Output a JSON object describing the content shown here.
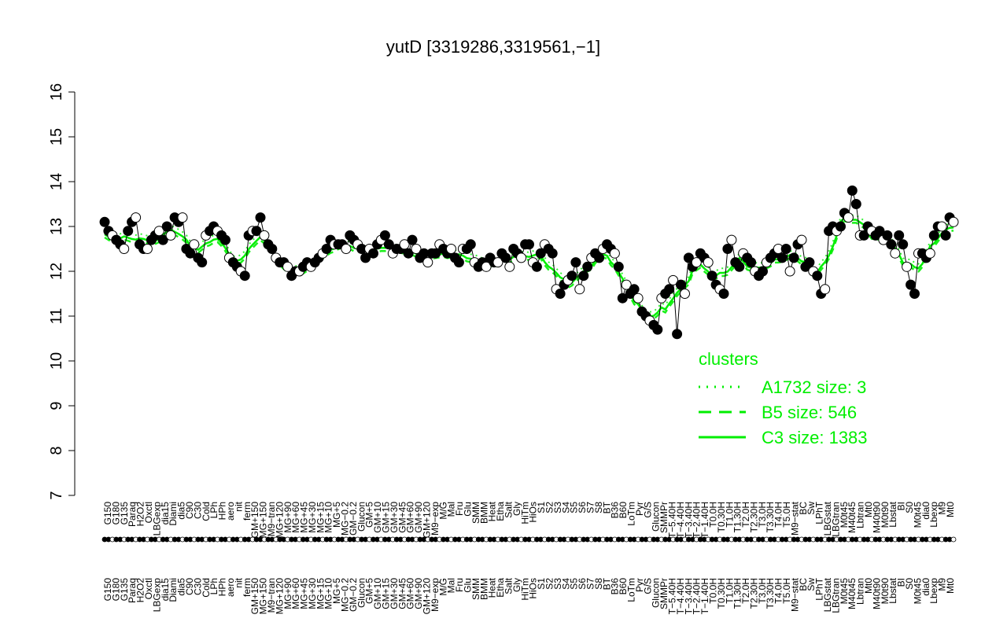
{
  "chart_data": {
    "type": "scatter",
    "title": "yutD [3319286,3319561,−1]",
    "xlabel": "",
    "ylabel": "",
    "ylim": [
      7,
      16
    ],
    "yticks": [
      7,
      8,
      9,
      10,
      11,
      12,
      13,
      14,
      15,
      16
    ],
    "grid": false,
    "x_tick_labels": [
      "G150",
      "G180",
      "G135",
      "Paraq",
      "H2O2",
      "Oxctl",
      "LBGexp",
      "dia15",
      "Diami",
      "dia5",
      "C90",
      "C30",
      "Cold",
      "LPh",
      "HPh",
      "aero",
      "nit",
      "ferm",
      "GM+150",
      "MG+150",
      "M9−tran",
      "MG+120",
      "MG+90",
      "MG+60",
      "MG+45",
      "MG+30",
      "MG+15",
      "MG+10",
      "MG+5",
      "MG−0.2",
      "GM−0.2",
      "Glucon",
      "GM+5",
      "GM+10",
      "GM+15",
      "GM+30",
      "GM+45",
      "GM+60",
      "GM+90",
      "GM+120",
      "M9−exp",
      "M/G",
      "Mal",
      "Fru",
      "Glu",
      "SMM",
      "BMM",
      "Heat",
      "Etha",
      "Salt",
      "Gly",
      "HiTm",
      "HiOs",
      "S1",
      "S2",
      "S3",
      "S4",
      "S5",
      "S6",
      "S7",
      "S8",
      "BT",
      "B36",
      "B60",
      "LoTm",
      "Pyr",
      "G/S",
      "Glucon",
      "SMMPr",
      "T−5.40H",
      "T−4.40H",
      "T−3.40H",
      "T−2.40H",
      "T−1.40H",
      "T0.0H",
      "T0.30H",
      "T1.0H",
      "T1.30H",
      "T2.0H",
      "T2.30H",
      "T3.0H",
      "T3.30H",
      "T4.0H",
      "T5.0H",
      "M9−stat",
      "BC",
      "Sw",
      "LPhT",
      "LBGstat",
      "LBGtran",
      "M0t45",
      "M40t45",
      "Lbtran",
      "Mt0",
      "M40t90",
      "M0t90",
      "Lbstat",
      "BI",
      "S0",
      "M0t45",
      "dia0",
      "Lbexp",
      "M9",
      "Mt0"
    ],
    "series": [
      {
        "name": "",
        "values": [
          13.1,
          12.9,
          12.8,
          12.7,
          12.6,
          12.5,
          12.9,
          13.1,
          13.2,
          12.6,
          12.5,
          12.5,
          12.7,
          12.8,
          12.9,
          12.7,
          13.0,
          12.8,
          13.2,
          13.1,
          13.2,
          12.5,
          12.4,
          12.6,
          12.3,
          12.2,
          12.8,
          12.9,
          13.0,
          12.9,
          12.8,
          12.7,
          12.3,
          12.2,
          12.1,
          12.0,
          11.9,
          12.8,
          12.9,
          12.9,
          13.2,
          12.8,
          12.6,
          12.5,
          12.3,
          12.2,
          12.2,
          12.1,
          11.9,
          12.0,
          12.0,
          12.1,
          12.2,
          12.1,
          12.2,
          12.3,
          12.4,
          12.5,
          12.7,
          12.6,
          12.6,
          12.6,
          12.5,
          12.8,
          12.7,
          12.6,
          12.5,
          12.3,
          12.5,
          12.4,
          12.6,
          12.7,
          12.8,
          12.6,
          12.4,
          12.5,
          12.5,
          12.6,
          12.4,
          12.7,
          12.5,
          12.3,
          12.4,
          12.2,
          12.4,
          12.4,
          12.6,
          12.5,
          12.4,
          12.5,
          12.3,
          12.2,
          12.5,
          12.5,
          12.6,
          12.2,
          12.1,
          12.2,
          12.1,
          12.3,
          12.2,
          12.2,
          12.4,
          12.3,
          12.1,
          12.5,
          12.4,
          12.3,
          12.6,
          12.6,
          12.2,
          12.1,
          12.4,
          12.6,
          12.5,
          12.4,
          11.6,
          11.5,
          11.7,
          11.8,
          11.9,
          12.2,
          11.6,
          11.9,
          12.1,
          12.3,
          12.4,
          12.3,
          12.5,
          12.6,
          12.5,
          12.4,
          12.1,
          11.4,
          11.7,
          11.5,
          11.6,
          11.4,
          11.1,
          11.0,
          10.9,
          10.8,
          10.7,
          11.4,
          11.5,
          11.6,
          11.8,
          10.6,
          11.7,
          11.5,
          12.3,
          12.1,
          12.2,
          12.4,
          12.3,
          12.2,
          11.9,
          11.7,
          11.6,
          11.5,
          12.5,
          12.7,
          12.2,
          12.1,
          12.4,
          12.3,
          12.2,
          12.0,
          11.9,
          12.0,
          12.2,
          12.3,
          12.4,
          12.5,
          12.3,
          12.5,
          12.0,
          12.3,
          12.6,
          12.7,
          12.1,
          12.2,
          12.0,
          11.9,
          11.5,
          11.6,
          12.9,
          13.0,
          12.9,
          13.0,
          13.3,
          13.2,
          13.8,
          13.5,
          12.8,
          12.8,
          13.0,
          12.9,
          12.8,
          12.9,
          12.7,
          12.8,
          12.6,
          12.4,
          12.8,
          12.6,
          12.1,
          11.7,
          11.5,
          12.4,
          12.4,
          12.3,
          12.4,
          12.8,
          13.0,
          13.0,
          12.8,
          13.2,
          13.1
        ]
      }
    ],
    "legend": {
      "title": "clusters",
      "position": "bottom-right",
      "entries": [
        {
          "label": "A1732 size: 3",
          "style": "dotted"
        },
        {
          "label": "B5 size: 546",
          "style": "dashed"
        },
        {
          "label": "C3 size: 1383",
          "style": "solid"
        }
      ]
    },
    "colors": {
      "legend": "#00ee00",
      "lines": "#00ee00",
      "points_fill_dark": "#000000",
      "points_fill_light": "#ffffff"
    }
  }
}
